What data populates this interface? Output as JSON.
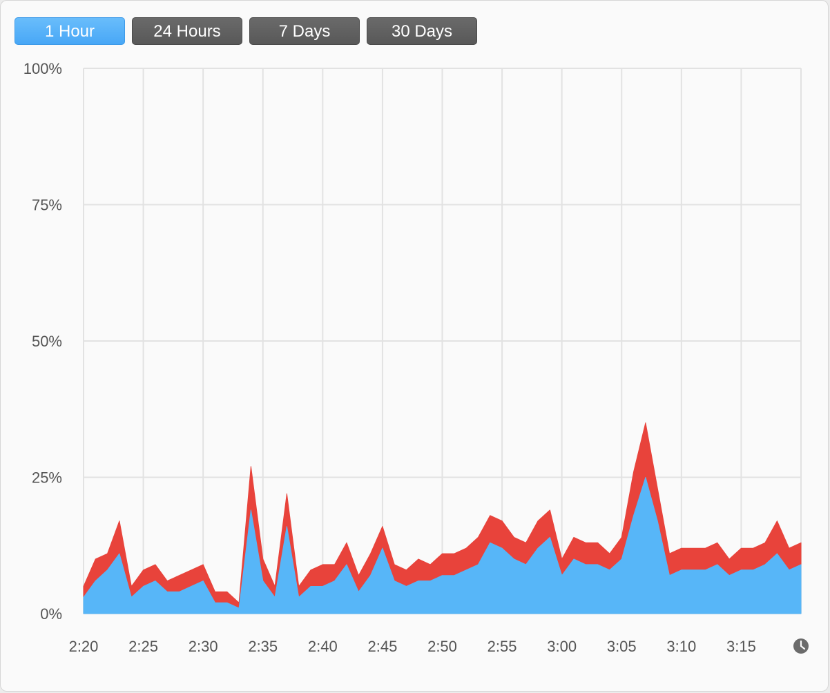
{
  "range_selector": {
    "buttons": [
      "1 Hour",
      "24 Hours",
      "7 Days",
      "30 Days"
    ],
    "selected_index": 0
  },
  "colors": {
    "user_area": "#57b6f8",
    "system_area": "#e8433b",
    "selected_button": "#55b0f9",
    "button": "#5f5f5f",
    "grid": "#e2e2e2"
  },
  "chart_data": {
    "type": "area",
    "stacked": true,
    "ylim": [
      0,
      100
    ],
    "yticks": [
      "100%",
      "75%",
      "50%",
      "25%",
      "0%"
    ],
    "xticks": [
      "2:20",
      "2:25",
      "2:30",
      "2:35",
      "2:40",
      "2:45",
      "2:50",
      "2:55",
      "3:00",
      "3:05",
      "3:10",
      "3:15"
    ],
    "xlim": [
      "2:20",
      "3:20"
    ],
    "end_icon": "clock-icon",
    "x": [
      "2:20",
      "2:21",
      "2:22",
      "2:23",
      "2:24",
      "2:25",
      "2:26",
      "2:27",
      "2:28",
      "2:29",
      "2:30",
      "2:31",
      "2:32",
      "2:33",
      "2:34",
      "2:35",
      "2:36",
      "2:37",
      "2:38",
      "2:39",
      "2:40",
      "2:41",
      "2:42",
      "2:43",
      "2:44",
      "2:45",
      "2:46",
      "2:47",
      "2:48",
      "2:49",
      "2:50",
      "2:51",
      "2:52",
      "2:53",
      "2:54",
      "2:55",
      "2:56",
      "2:57",
      "2:58",
      "2:59",
      "3:00",
      "3:01",
      "3:02",
      "3:03",
      "3:04",
      "3:05",
      "3:06",
      "3:07",
      "3:08",
      "3:09",
      "3:10",
      "3:11",
      "3:12",
      "3:13",
      "3:14",
      "3:15",
      "3:16",
      "3:17",
      "3:18",
      "3:19",
      "3:20"
    ],
    "series": [
      {
        "color": "#57b6f8",
        "values": [
          3,
          6,
          8,
          11,
          3,
          5,
          6,
          4,
          4,
          5,
          6,
          2,
          2,
          1,
          19,
          6,
          3,
          16,
          3,
          5,
          5,
          6,
          9,
          4,
          7,
          12,
          6,
          5,
          6,
          6,
          7,
          7,
          8,
          9,
          13,
          12,
          10,
          9,
          12,
          14,
          7,
          10,
          9,
          9,
          8,
          10,
          18,
          25,
          17,
          7,
          8,
          8,
          8,
          9,
          7,
          8,
          8,
          9,
          11,
          8,
          9
        ]
      },
      {
        "color": "#e8433b",
        "values": [
          2,
          4,
          3,
          6,
          2,
          3,
          3,
          2,
          3,
          3,
          3,
          2,
          2,
          1,
          8,
          4,
          2,
          6,
          2,
          3,
          4,
          3,
          4,
          3,
          4,
          4,
          3,
          3,
          4,
          3,
          4,
          4,
          4,
          5,
          5,
          5,
          4,
          4,
          5,
          5,
          3,
          4,
          4,
          4,
          3,
          4,
          8,
          10,
          6,
          4,
          4,
          4,
          4,
          4,
          3,
          4,
          4,
          4,
          6,
          4,
          4
        ]
      }
    ]
  }
}
